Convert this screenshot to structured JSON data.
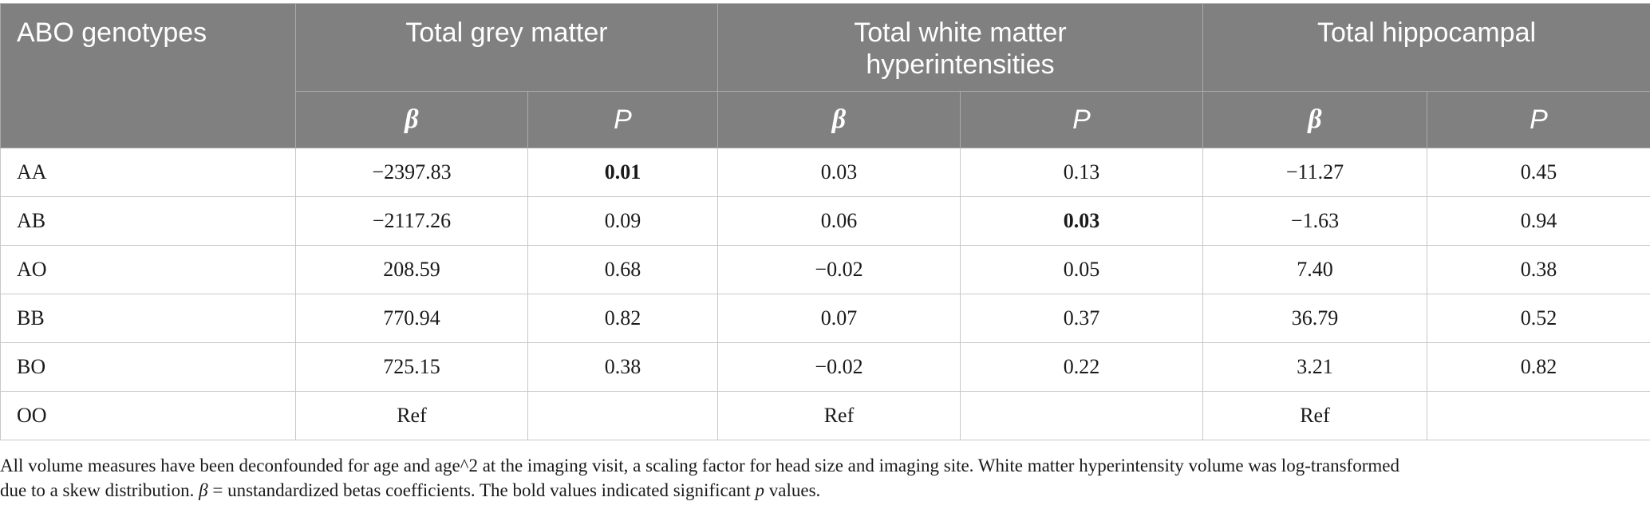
{
  "table": {
    "stub_header": "ABO genotypes",
    "groups": [
      "Total grey matter",
      "Total white matter hyperintensities",
      "Total hippocampal"
    ],
    "sub_headers": {
      "beta": "β",
      "p": "P"
    },
    "rows": [
      {
        "genotype": "AA",
        "cells": [
          "−2397.83",
          "0.01",
          "0.03",
          "0.13",
          "−11.27",
          "0.45"
        ],
        "bold": [
          false,
          true,
          false,
          false,
          false,
          false
        ]
      },
      {
        "genotype": "AB",
        "cells": [
          "−2117.26",
          "0.09",
          "0.06",
          "0.03",
          "−1.63",
          "0.94"
        ],
        "bold": [
          false,
          false,
          false,
          true,
          false,
          false
        ]
      },
      {
        "genotype": "AO",
        "cells": [
          "208.59",
          "0.68",
          "−0.02",
          "0.05",
          "7.40",
          "0.38"
        ],
        "bold": [
          false,
          false,
          false,
          false,
          false,
          false
        ]
      },
      {
        "genotype": "BB",
        "cells": [
          "770.94",
          "0.82",
          "0.07",
          "0.37",
          "36.79",
          "0.52"
        ],
        "bold": [
          false,
          false,
          false,
          false,
          false,
          false
        ]
      },
      {
        "genotype": "BO",
        "cells": [
          "725.15",
          "0.38",
          "−0.02",
          "0.22",
          "3.21",
          "0.82"
        ],
        "bold": [
          false,
          false,
          false,
          false,
          false,
          false
        ]
      },
      {
        "genotype": "OO",
        "cells": [
          "Ref",
          "",
          "Ref",
          "",
          "Ref",
          ""
        ],
        "bold": [
          false,
          false,
          false,
          false,
          false,
          false
        ]
      }
    ]
  },
  "footnote": {
    "line1": "All volume measures have been deconfounded for age and age^2 at the imaging visit, a scaling factor for head size and imaging site. White matter hyperintensity volume was log-transformed",
    "line2_before_beta": "due to a skew distribution. ",
    "beta_symbol": "β",
    "line2_after_beta": " = unstandardized betas coefficients. The bold values indicated significant ",
    "p_symbol": "p",
    "line2_end": " values."
  }
}
